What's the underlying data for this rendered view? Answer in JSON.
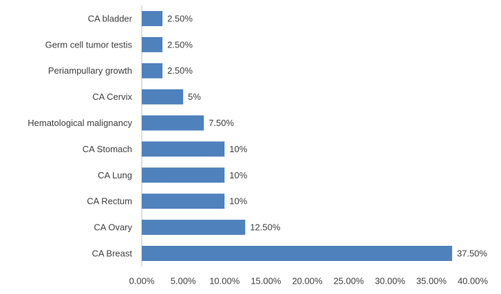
{
  "chart_data": {
    "type": "hbar",
    "categories": [
      "CA Breast",
      "CA Ovary",
      "CA Rectum",
      "CA Lung",
      "CA Stomach",
      "Hematological malignancy",
      "CA Cervix",
      "Periampullary growth",
      "Germ cell tumor testis",
      "CA bladder"
    ],
    "values": [
      37.5,
      12.5,
      10,
      10,
      10,
      7.5,
      5,
      2.5,
      2.5,
      2.5
    ],
    "value_labels": [
      "37.50%",
      "12.50%",
      "10%",
      "10%",
      "10%",
      "7.50%",
      "5%",
      "2.50%",
      "2.50%",
      "2.50%"
    ],
    "color": "#4f81bd",
    "xlim": [
      0,
      40
    ],
    "xticks": [
      {
        "value": 0,
        "label": "0.00%"
      },
      {
        "value": 5,
        "label": "5.00%"
      },
      {
        "value": 10,
        "label": "10.00%"
      },
      {
        "value": 15,
        "label": "15.00%"
      },
      {
        "value": 20,
        "label": "20.00%"
      },
      {
        "value": 25,
        "label": "25.00%"
      },
      {
        "value": 30,
        "label": "30.00%"
      },
      {
        "value": 35,
        "label": "35.00%"
      },
      {
        "value": 40,
        "label": "40.00%"
      }
    ],
    "grid": false
  }
}
